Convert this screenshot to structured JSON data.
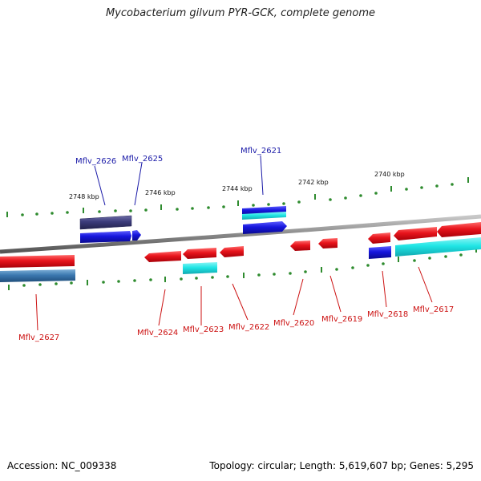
{
  "title": "Mycobacterium gilvum PYR-GCK, complete genome",
  "footer": {
    "accession": "Accession: NC_009338",
    "topology": "Topology: circular; Length: 5,619,607 bp; Genes: 5,295"
  },
  "colors": {
    "backbone": "#8a8a8a",
    "tick": "#2e8b2e",
    "forward_label": "#1a1aa8",
    "reverse_label": "#cc1111",
    "red_gene": "#e8141c",
    "blue_gene": "#1616dd",
    "cyan_gene": "#20e5e5",
    "navy_gene": "#3b3b7a",
    "steel_gene": "#3b78b0"
  },
  "scale_labels": [
    "2748 kbp",
    "2746 kbp",
    "2744 kbp",
    "2742 kbp",
    "2740 kbp"
  ],
  "gene_labels_top": [
    "Mflv_2626",
    "Mflv_2625",
    "Mflv_2621"
  ],
  "gene_labels_bottom": [
    "Mflv_2627",
    "Mflv_2624",
    "Mflv_2623",
    "Mflv_2622",
    "Mflv_2620",
    "Mflv_2619",
    "Mflv_2618",
    "Mflv_2617"
  ]
}
